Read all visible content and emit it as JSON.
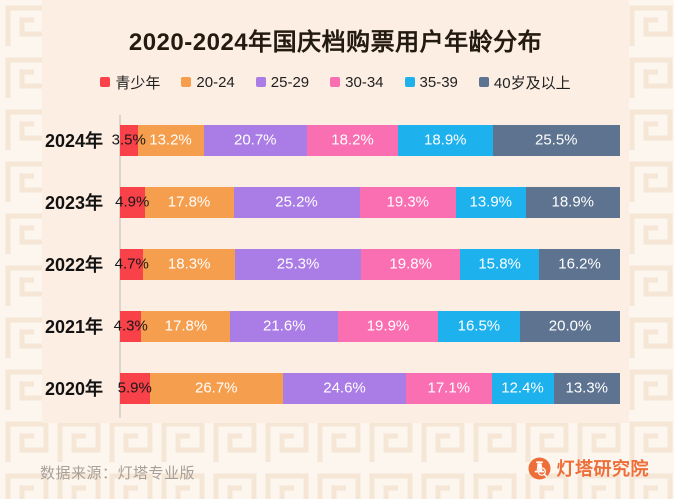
{
  "title": "2020-2024年国庆档购票用户年龄分布",
  "chart_data": {
    "type": "bar",
    "orientation": "horizontal-stacked",
    "unit": "%",
    "xlim": [
      0,
      100
    ],
    "legend_position": "top",
    "categories": [
      "2024年",
      "2023年",
      "2022年",
      "2021年",
      "2020年"
    ],
    "series": [
      {
        "name": "青少年",
        "color": "#f84149",
        "values": [
          3.5,
          4.9,
          4.7,
          4.3,
          5.9
        ]
      },
      {
        "name": "20-24",
        "color": "#f59e4d",
        "values": [
          13.2,
          17.8,
          18.3,
          17.8,
          26.7
        ]
      },
      {
        "name": "25-29",
        "color": "#aa7ce6",
        "values": [
          20.7,
          25.2,
          25.3,
          21.6,
          24.6
        ]
      },
      {
        "name": "30-34",
        "color": "#fa6fb2",
        "values": [
          18.2,
          19.3,
          19.8,
          19.9,
          17.1
        ]
      },
      {
        "name": "35-39",
        "color": "#1db2ee",
        "values": [
          18.9,
          13.9,
          15.8,
          16.5,
          12.4
        ]
      },
      {
        "name": "40岁及以上",
        "color": "#5d7390",
        "values": [
          25.5,
          18.9,
          16.2,
          20.0,
          13.3
        ]
      }
    ],
    "value_labels": [
      [
        "3.5%",
        "13.2%",
        "20.7%",
        "18.2%",
        "18.9%",
        "25.5%"
      ],
      [
        "4.9%",
        "17.8%",
        "25.2%",
        "19.3%",
        "13.9%",
        "18.9%"
      ],
      [
        "4.7%",
        "18.3%",
        "25.3%",
        "19.8%",
        "15.8%",
        "16.2%"
      ],
      [
        "4.3%",
        "17.8%",
        "21.6%",
        "19.9%",
        "16.5%",
        "20.0%"
      ],
      [
        "5.9%",
        "26.7%",
        "24.6%",
        "17.1%",
        "12.4%",
        "13.3%"
      ]
    ],
    "first_series_label_color": "#181818"
  },
  "footer": {
    "source": "数据来源：灯塔专业版",
    "brand": "灯塔研究院"
  },
  "style": {
    "panel_bg": "#fdeee4",
    "page_bg": "#fcf6ee",
    "pattern_line": "#f5e6d5",
    "axis_color": "#dbd5cd",
    "brand_orange": "#ee6e3a"
  }
}
